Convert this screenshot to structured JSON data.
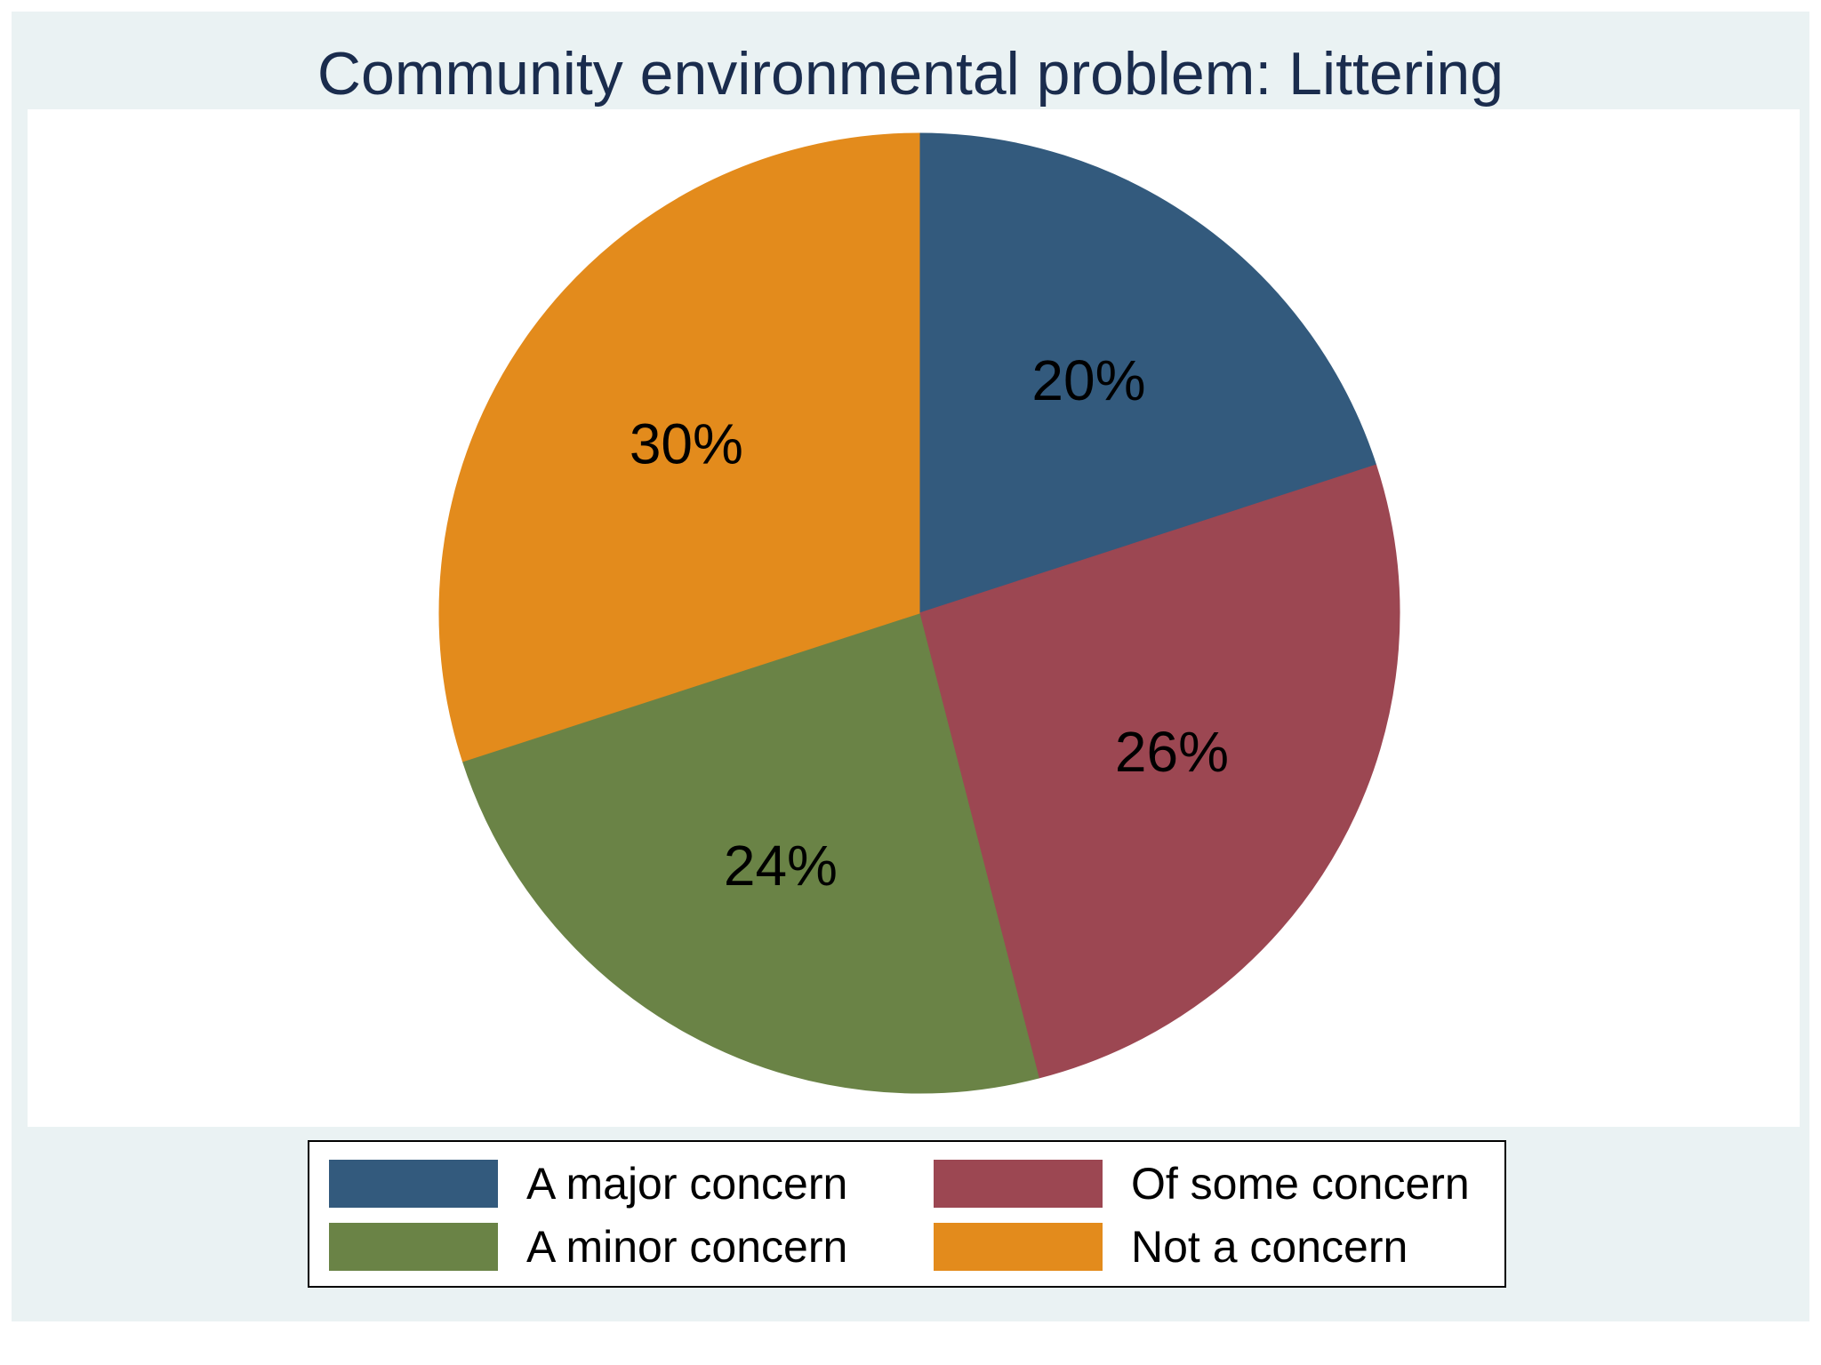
{
  "chart_data": {
    "type": "pie",
    "title": "Community environmental problem: Littering",
    "categories": [
      "A major concern",
      "Of some concern",
      "A minor concern",
      "Not a concern"
    ],
    "values": [
      20,
      26,
      24,
      30
    ],
    "value_labels": [
      "20%",
      "26%",
      "24%",
      "30%"
    ],
    "colors": [
      "#335a7d",
      "#9c4752",
      "#6a8346",
      "#e38b1c"
    ],
    "start": "12 o'clock",
    "direction": "clockwise",
    "legend": {
      "position": "bottom",
      "columns": 2,
      "entries": [
        "A major concern",
        "Of some concern",
        "A minor concern",
        "Not a concern"
      ]
    }
  }
}
